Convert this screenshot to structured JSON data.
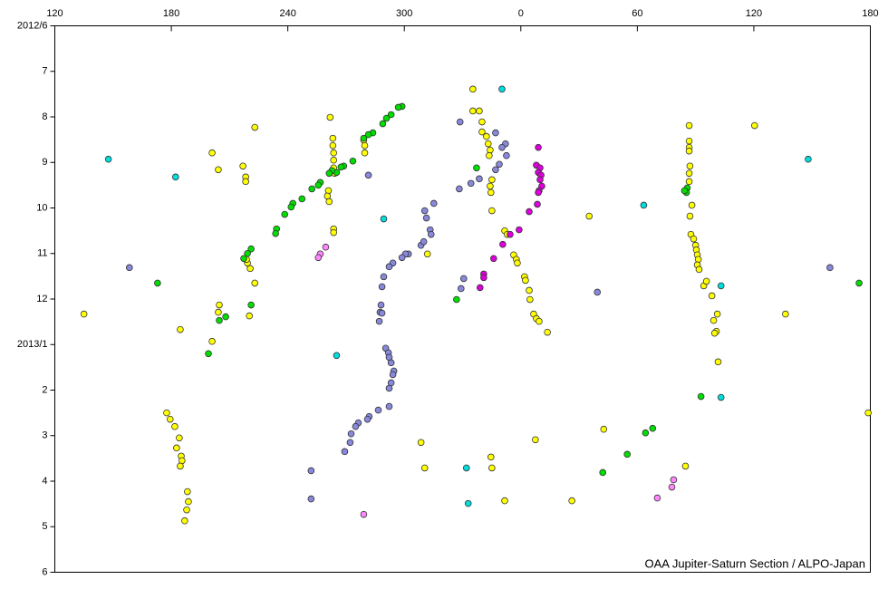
{
  "chart_data": {
    "type": "scatter",
    "annotation": "OAA Jupiter-Saturn Section / ALPO-Japan",
    "xlim": [
      120,
      540
    ],
    "xticks": [
      120,
      180,
      240,
      300,
      {
        "value": 360,
        "label": "0"
      },
      {
        "value": 420,
        "label": "60"
      },
      {
        "value": 480,
        "label": "120"
      },
      {
        "value": 540,
        "label": "180"
      }
    ],
    "ylim": [
      0,
      12
    ],
    "yticks": [
      {
        "value": 0,
        "label": "2012/6"
      },
      {
        "value": 1,
        "label": "7"
      },
      {
        "value": 2,
        "label": "8"
      },
      {
        "value": 3,
        "label": "9"
      },
      {
        "value": 4,
        "label": "10"
      },
      {
        "value": 5,
        "label": "11"
      },
      {
        "value": 6,
        "label": "12"
      },
      {
        "value": 7,
        "label": "2013/1"
      },
      {
        "value": 8,
        "label": "2"
      },
      {
        "value": 9,
        "label": "3"
      },
      {
        "value": 10,
        "label": "4"
      },
      {
        "value": 11,
        "label": "5"
      },
      {
        "value": 12,
        "label": "6"
      }
    ],
    "y_reversed": true,
    "series": [
      {
        "color": "#ffff00",
        "x": [
          135.0,
          201.0,
          204.2,
          216.9,
          218.3,
          218.3,
          223.0,
          204.7,
          204.2,
          220.2,
          184.6,
          201.0,
          219.2,
          220.6,
          223.0,
          218.7,
          177.6,
          179.4,
          181.8,
          184.1,
          182.7,
          185.1,
          185.5,
          184.6,
          188.3,
          188.8,
          187.9,
          186.9,
          261.8,
          263.2,
          263.2,
          263.6,
          263.6,
          263.6,
          264.1,
          260.9,
          260.4,
          261.3,
          263.6,
          263.6,
          279.1,
          279.6,
          279.6,
          308.6,
          310.5,
          311.9,
          335.3,
          335.3,
          338.6,
          340.0,
          340.0,
          342.3,
          343.2,
          344.2,
          343.7,
          345.1,
          344.6,
          344.2,
          345.1,
          351.7,
          353.0,
          356.3,
          357.7,
          358.2,
          361.9,
          362.4,
          364.3,
          364.7,
          366.6,
          368.0,
          369.4,
          373.7,
          367.5,
          344.6,
          345.1,
          351.7,
          386.3,
          395.2,
          402.7,
          446.7,
          446.7,
          446.7,
          446.7,
          447.1,
          446.7,
          446.7,
          448.1,
          447.1,
          447.6,
          449.0,
          450.0,
          450.4,
          450.9,
          451.4,
          450.9,
          451.8,
          454.2,
          455.6,
          458.4,
          461.2,
          459.3,
          460.7,
          459.8,
          461.6,
          480.4,
          496.3,
          538.9,
          444.8
        ],
        "values": [
          6.33,
          2.79,
          3.16,
          3.08,
          3.32,
          3.42,
          2.23,
          6.13,
          6.29,
          6.37,
          6.67,
          6.93,
          5.21,
          5.33,
          5.65,
          5.13,
          8.5,
          8.64,
          8.8,
          9.05,
          9.27,
          9.45,
          9.55,
          9.67,
          10.23,
          10.45,
          10.63,
          10.87,
          2.01,
          2.47,
          2.63,
          2.79,
          2.95,
          3.12,
          3.24,
          3.62,
          3.74,
          3.86,
          4.46,
          4.54,
          2.51,
          2.63,
          2.79,
          9.15,
          9.71,
          5.01,
          1.39,
          1.87,
          1.87,
          2.33,
          2.11,
          2.43,
          2.59,
          2.73,
          2.85,
          3.38,
          3.66,
          3.52,
          4.06,
          4.5,
          4.58,
          5.03,
          5.13,
          5.21,
          5.51,
          5.59,
          5.81,
          6.01,
          6.33,
          6.43,
          6.49,
          6.73,
          9.09,
          9.47,
          9.71,
          10.43,
          10.43,
          4.18,
          8.86,
          2.19,
          2.53,
          2.67,
          2.75,
          3.08,
          3.24,
          3.42,
          3.94,
          4.18,
          4.58,
          4.68,
          4.82,
          4.92,
          5.03,
          5.13,
          5.25,
          5.35,
          5.71,
          5.61,
          5.93,
          6.33,
          6.47,
          6.71,
          6.75,
          7.38,
          2.19,
          6.33,
          8.5,
          9.67
        ]
      },
      {
        "color": "#00dd00",
        "x": [
          298.8,
          296.9,
          293.2,
          290.8,
          288.9,
          283.8,
          281.5,
          279.1,
          273.5,
          268.8,
          267.4,
          265.1,
          262.7,
          261.3,
          256.7,
          255.7,
          252.4,
          247.3,
          242.6,
          241.7,
          238.4,
          234.2,
          233.7,
          221.1,
          219.2,
          217.3,
          221.1,
          204.7,
          208.0,
          199.1,
          172.9,
          337.2,
          326.9,
          445.7,
          445.3,
          444.3,
          452.8,
          414.8,
          402.2,
          427.9,
          424.2,
          534.2
        ],
        "values": [
          1.77,
          1.79,
          1.95,
          2.03,
          2.15,
          2.35,
          2.39,
          2.47,
          2.97,
          3.08,
          3.1,
          3.22,
          3.18,
          3.24,
          3.44,
          3.5,
          3.58,
          3.8,
          3.9,
          3.98,
          4.14,
          4.46,
          4.56,
          4.9,
          5.0,
          5.11,
          6.13,
          6.47,
          6.39,
          7.2,
          5.65,
          3.12,
          6.01,
          3.56,
          3.66,
          3.62,
          8.14,
          9.41,
          9.81,
          8.84,
          8.94,
          5.65
        ]
      },
      {
        "color": "#8888dd",
        "x": [
          328.7,
          347.0,
          352.1,
          350.3,
          352.6,
          348.9,
          347.0,
          338.6,
          334.3,
          328.3,
          315.2,
          310.5,
          311.4,
          313.3,
          313.8,
          308.6,
          310.0,
          302.1,
          300.6,
          298.8,
          294.1,
          292.2,
          289.4,
          288.5,
          288.0,
          287.5,
          287.1,
          288.5,
          290.4,
          291.8,
          292.2,
          293.2,
          294.6,
          294.1,
          293.2,
          292.2,
          292.2,
          286.6,
          281.9,
          281.0,
          276.3,
          274.9,
          272.6,
          272.1,
          269.3,
          281.5,
          252.0,
          252.0,
          330.6,
          329.2,
          158.4,
          399.4,
          519.2
        ],
        "values": [
          2.11,
          2.35,
          2.59,
          2.67,
          2.85,
          3.04,
          3.16,
          3.36,
          3.46,
          3.58,
          3.9,
          4.06,
          4.22,
          4.48,
          4.58,
          4.82,
          4.74,
          5.01,
          5.01,
          5.09,
          5.21,
          5.29,
          5.51,
          5.73,
          6.13,
          6.29,
          6.49,
          6.31,
          7.08,
          7.18,
          7.28,
          7.4,
          7.58,
          7.66,
          7.84,
          7.96,
          8.36,
          8.44,
          8.58,
          8.64,
          8.72,
          8.8,
          8.96,
          9.15,
          9.35,
          3.28,
          9.77,
          10.39,
          5.55,
          5.77,
          5.31,
          5.85,
          5.31
        ]
      },
      {
        "color": "#dd00dd",
        "x": [
          369.0,
          368.0,
          369.9,
          369.0,
          370.4,
          369.9,
          370.8,
          369.4,
          369.0,
          368.5,
          364.3,
          359.1,
          354.5,
          350.7,
          346.0,
          340.9,
          340.9,
          339.0
        ],
        "values": [
          2.67,
          3.06,
          3.12,
          3.22,
          3.28,
          3.38,
          3.52,
          3.62,
          3.66,
          3.92,
          4.08,
          4.48,
          4.58,
          4.8,
          5.11,
          5.45,
          5.53,
          5.75
        ]
      },
      {
        "color": "#00dddd",
        "x": [
          147.6,
          182.2,
          350.3,
          289.4,
          265.1,
          332.0,
          332.9,
          423.3,
          508.0,
          463.1,
          463.1
        ],
        "values": [
          2.93,
          3.32,
          1.39,
          4.24,
          7.24,
          9.71,
          10.49,
          3.94,
          2.93,
          5.71,
          8.16
        ]
      },
      {
        "color": "#ff88ff",
        "x": [
          259.5,
          256.7,
          255.7,
          279.1,
          430.3,
          437.8,
          438.7
        ],
        "values": [
          4.86,
          5.01,
          5.09,
          10.73,
          10.37,
          10.13,
          9.97
        ]
      }
    ]
  }
}
